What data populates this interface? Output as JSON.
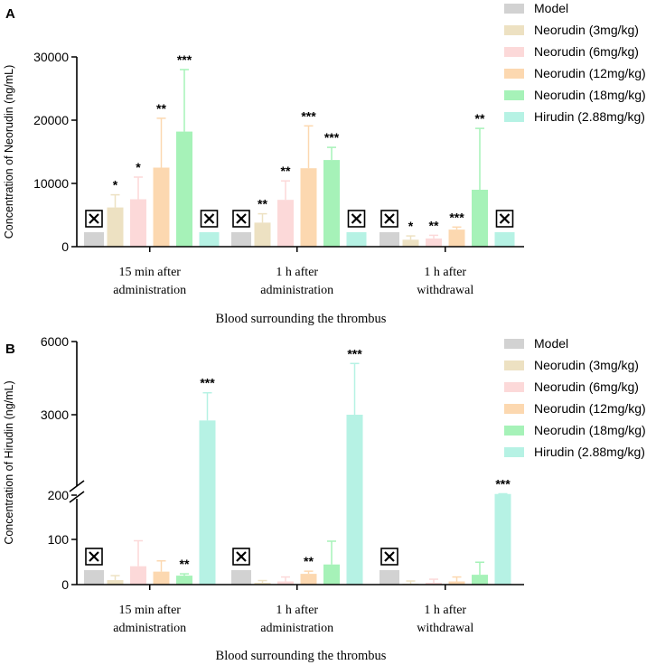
{
  "chart_data": [
    {
      "panel_label": "A",
      "type": "bar",
      "ylabel": "Concentration of Neorudin  (ng/mL)",
      "xlabel": "Blood surrounding the thrombus",
      "yticks": [
        "0",
        "10000",
        "20000",
        "30000"
      ],
      "ylim": [
        0,
        30000
      ],
      "groups": [
        [
          "15 min after",
          "administration"
        ],
        [
          "1 h after",
          "administration"
        ],
        [
          "1 h after",
          "withdrawal"
        ]
      ],
      "series": [
        {
          "name": "Model",
          "color": "#d2d2d2",
          "values": [
            null,
            null,
            null
          ],
          "errors": [
            null,
            null,
            null
          ],
          "sig": [
            "",
            "",
            ""
          ],
          "not_detected": [
            true,
            true,
            true
          ]
        },
        {
          "name": "Neorudin (3mg/kg)",
          "color": "#ede1c2",
          "values": [
            6200,
            3800,
            1100
          ],
          "errors": [
            2000,
            1400,
            600
          ],
          "sig": [
            "*",
            "**",
            "*"
          ],
          "not_detected": [
            false,
            false,
            false
          ]
        },
        {
          "name": "Neorudin (6mg/kg)",
          "color": "#fcd9d9",
          "values": [
            7500,
            7400,
            1300
          ],
          "errors": [
            3500,
            3000,
            500
          ],
          "sig": [
            "*",
            "**",
            "**"
          ],
          "not_detected": [
            false,
            false,
            false
          ]
        },
        {
          "name": "Neorudin (12mg/kg)",
          "color": "#fcd8b0",
          "values": [
            12500,
            12400,
            2700
          ],
          "errors": [
            7800,
            6700,
            400
          ],
          "sig": [
            "**",
            "***",
            "***"
          ],
          "not_detected": [
            false,
            false,
            false
          ]
        },
        {
          "name": "Neorudin (18mg/kg)",
          "color": "#a6f2b8",
          "values": [
            18200,
            13700,
            9000
          ],
          "errors": [
            9800,
            2000,
            9700
          ],
          "sig": [
            "***",
            "***",
            "**"
          ],
          "not_detected": [
            false,
            false,
            false
          ]
        },
        {
          "name": "Hirudin (2.88mg/kg)",
          "color": "#b6f2e4",
          "values": [
            null,
            null,
            null
          ],
          "errors": [
            null,
            null,
            null
          ],
          "sig": [
            "",
            "",
            ""
          ],
          "not_detected": [
            true,
            true,
            true
          ]
        }
      ]
    },
    {
      "panel_label": "B",
      "type": "bar",
      "ylabel": "Concentration of Hirudin  (ng/mL)",
      "xlabel": "Blood surrounding the thrombus",
      "yticks": [
        "0",
        "100",
        "200",
        "3000",
        "6000"
      ],
      "axis_break": [
        200,
        250
      ],
      "groups": [
        [
          "15 min after",
          "administration"
        ],
        [
          "1 h after",
          "administration"
        ],
        [
          "1 h after",
          "withdrawal"
        ]
      ],
      "series": [
        {
          "name": "Model",
          "color": "#d2d2d2",
          "values": [
            null,
            null,
            null
          ],
          "errors": [
            null,
            null,
            null
          ],
          "sig": [
            "",
            "",
            ""
          ],
          "not_detected": [
            true,
            true,
            true
          ]
        },
        {
          "name": "Neorudin (3mg/kg)",
          "color": "#ede1c2",
          "values": [
            10,
            4,
            2
          ],
          "errors": [
            10,
            5,
            6
          ],
          "sig": [
            "",
            "",
            ""
          ],
          "not_detected": [
            false,
            false,
            false
          ]
        },
        {
          "name": "Neorudin (6mg/kg)",
          "color": "#fcd9d9",
          "values": [
            41,
            7,
            4
          ],
          "errors": [
            57,
            10,
            8
          ],
          "sig": [
            "",
            "",
            ""
          ],
          "not_detected": [
            false,
            false,
            false
          ]
        },
        {
          "name": "Neorudin (12mg/kg)",
          "color": "#fcd8b0",
          "values": [
            29,
            24,
            7
          ],
          "errors": [
            24,
            6,
            10
          ],
          "sig": [
            "",
            "**",
            ""
          ],
          "not_detected": [
            false,
            false,
            false
          ]
        },
        {
          "name": "Neorudin (18mg/kg)",
          "color": "#a6f2b8",
          "values": [
            20,
            45,
            22
          ],
          "errors": [
            4,
            52,
            28
          ],
          "sig": [
            "**",
            "",
            ""
          ],
          "not_detected": [
            false,
            false,
            false
          ]
        },
        {
          "name": "Hirudin (2.88mg/kg)",
          "color": "#b6f2e4",
          "values": [
            2800,
            3000,
            240
          ],
          "errors": [
            1100,
            2100,
            8
          ],
          "sig": [
            "***",
            "***",
            "***"
          ],
          "not_detected": [
            false,
            false,
            false
          ]
        }
      ]
    }
  ]
}
